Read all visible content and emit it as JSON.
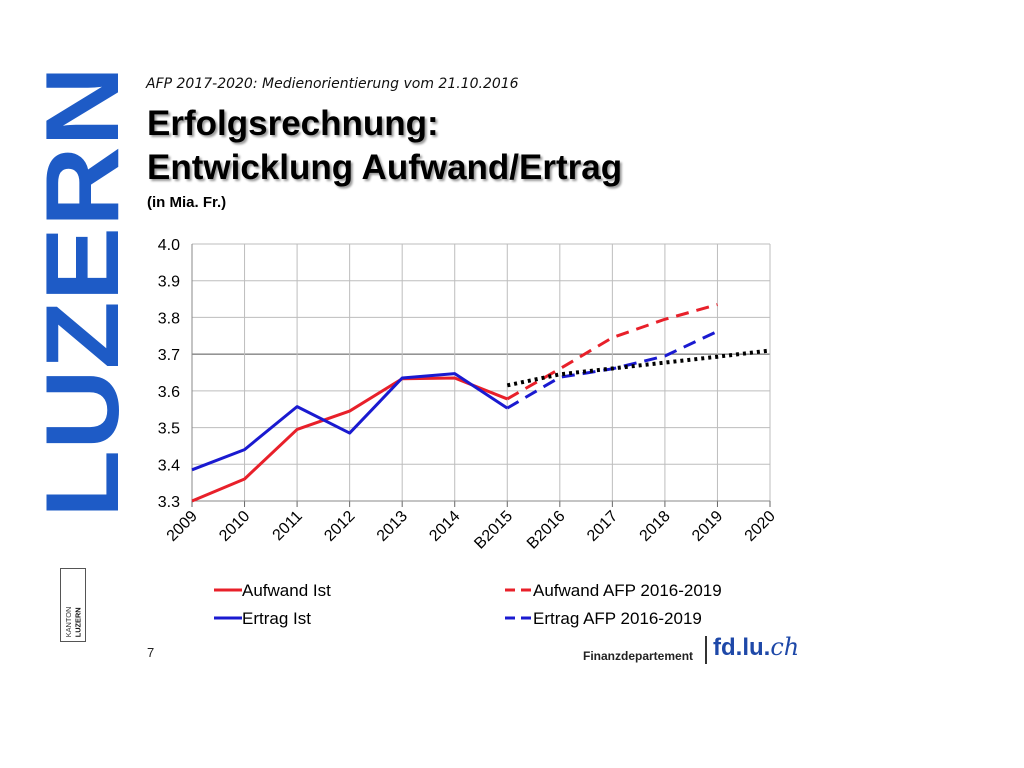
{
  "header": {
    "subtitle": "AFP 2017-2020: Medienorientierung vom 21.10.2016",
    "title_line1": "Erfolgsrechnung:",
    "title_line2": "Entwicklung Aufwand/Ertrag",
    "unit": "(in Mia. Fr.)"
  },
  "logo": {
    "text": "LUZERN",
    "small_text_top": "KANTON",
    "small_text_bottom": "LUZERN",
    "color": "#1e5bc6"
  },
  "footer": {
    "page_number": "7",
    "department": "Finanzdepartement",
    "site_main": "fd.lu.",
    "site_tld": "ch",
    "site_color": "#1e48a8"
  },
  "chart_data": {
    "type": "line",
    "categories": [
      "2009",
      "2010",
      "2011",
      "2012",
      "2013",
      "2014",
      "B2015",
      "B2016",
      "2017",
      "2018",
      "2019",
      "2020"
    ],
    "ylim": [
      3.3,
      4.0
    ],
    "yticks": [
      "3.3",
      "3.4",
      "3.5",
      "3.6",
      "3.7",
      "3.8",
      "3.9",
      "4.0"
    ],
    "grid": true,
    "legend_position": "bottom",
    "series": [
      {
        "name": "Aufwand Ist",
        "style": "solid",
        "color": "#e8202a",
        "values": [
          3.3,
          3.36,
          3.495,
          3.545,
          3.633,
          3.635,
          3.578,
          null,
          null,
          null,
          null,
          null
        ]
      },
      {
        "name": "Ertrag Ist",
        "style": "solid",
        "color": "#1a1ad0",
        "values": [
          3.385,
          3.44,
          3.557,
          3.485,
          3.635,
          3.647,
          3.553,
          null,
          null,
          null,
          null,
          null
        ]
      },
      {
        "name": "Aufwand AFP 2016-2019",
        "style": "dashed",
        "color": "#e8202a",
        "values": [
          null,
          null,
          null,
          null,
          null,
          null,
          3.578,
          3.66,
          3.745,
          3.795,
          3.835,
          null
        ]
      },
      {
        "name": "Ertrag AFP 2016-2019",
        "style": "dashed",
        "color": "#1a1ad0",
        "values": [
          null,
          null,
          null,
          null,
          null,
          null,
          3.553,
          3.637,
          3.66,
          3.695,
          3.762,
          null
        ]
      },
      {
        "style": "dotted",
        "color": "#000000",
        "values": [
          null,
          null,
          null,
          null,
          null,
          null,
          3.615,
          3.645,
          3.661,
          3.677,
          3.693,
          3.71
        ]
      }
    ]
  }
}
